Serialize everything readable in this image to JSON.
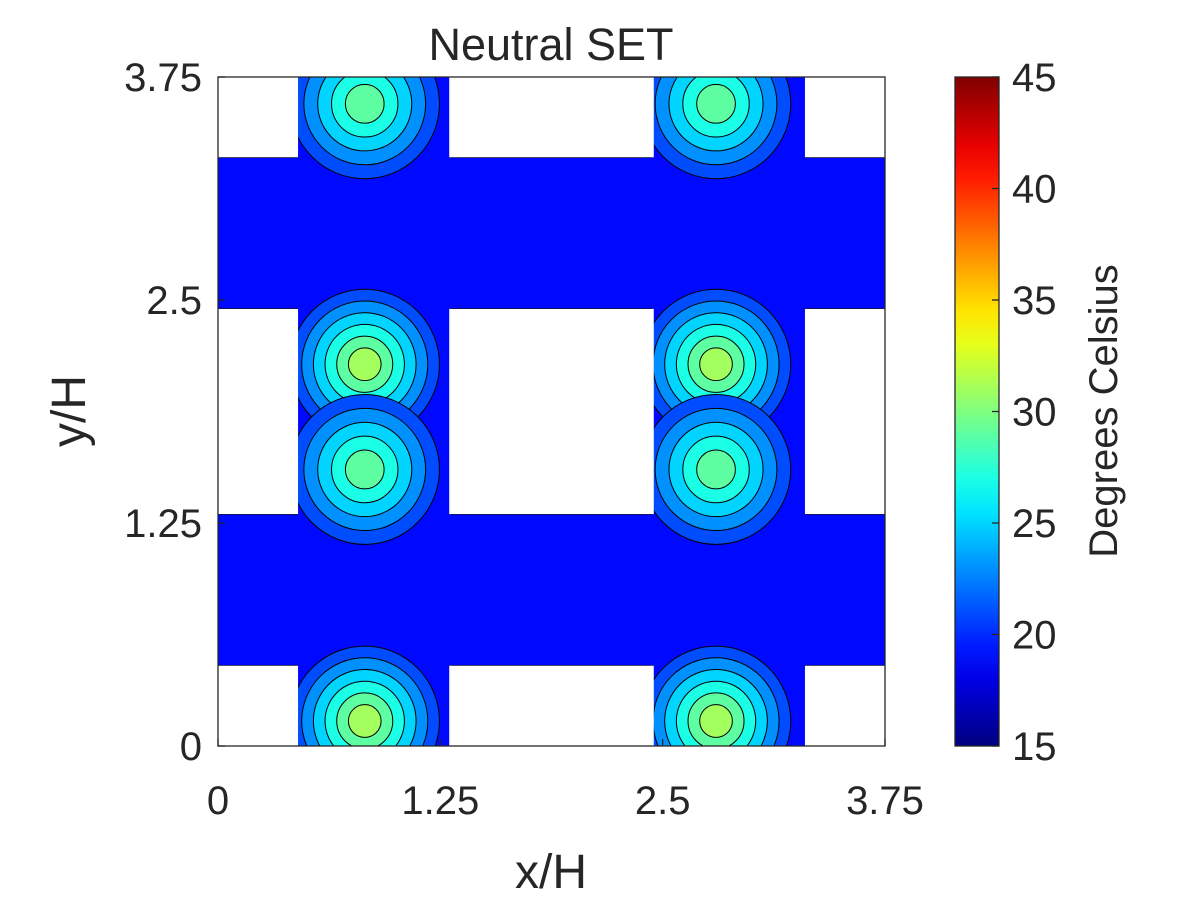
{
  "chart_data": {
    "type": "contour",
    "title": "Neutral SET",
    "xlabel": "x/H",
    "ylabel": "y/H",
    "xlim": [
      0,
      3.75
    ],
    "ylim": [
      0,
      3.75
    ],
    "xticks": [
      "0",
      "1.25",
      "2.5",
      "3.75"
    ],
    "yticks": [
      "0",
      "1.25",
      "2.5",
      "3.75"
    ],
    "colorbar": {
      "label": "Degrees Celsius",
      "range": [
        15,
        45
      ],
      "ticks": [
        "15",
        "20",
        "25",
        "30",
        "35",
        "40",
        "45"
      ],
      "colormap": "jet"
    },
    "levels_celsius": [
      17,
      19,
      21,
      23,
      25,
      27,
      29,
      31
    ],
    "buildings": [
      {
        "x": [
          0,
          0.45
        ],
        "y": [
          0.45,
          1.3
        ]
      },
      {
        "x": [
          1.3,
          2.45
        ],
        "y": [
          0.45,
          1.3
        ]
      },
      {
        "x": [
          3.3,
          3.75
        ],
        "y": [
          0.45,
          1.3
        ]
      },
      {
        "x": [
          0,
          0.45
        ],
        "y": [
          2.45,
          3.3
        ]
      },
      {
        "x": [
          1.3,
          2.45
        ],
        "y": [
          2.45,
          3.3
        ]
      },
      {
        "x": [
          3.3,
          3.75
        ],
        "y": [
          2.45,
          3.3
        ]
      },
      {
        "x": [
          0,
          0.45
        ],
        "y": [
          1.3,
          2.45
        ]
      },
      {
        "x": [
          3.3,
          3.75
        ],
        "y": [
          1.3,
          2.45
        ]
      }
    ],
    "whitespace": [
      {
        "x": [
          0,
          0.45
        ],
        "y": [
          0,
          0.45
        ]
      },
      {
        "x": [
          1.3,
          2.45
        ],
        "y": [
          0,
          0.45
        ]
      },
      {
        "x": [
          3.3,
          3.75
        ],
        "y": [
          0,
          0.45
        ]
      },
      {
        "x": [
          0,
          0.45
        ],
        "y": [
          1.3,
          2.45
        ]
      },
      {
        "x": [
          1.3,
          2.45
        ],
        "y": [
          1.3,
          2.45
        ]
      },
      {
        "x": [
          3.3,
          3.75
        ],
        "y": [
          1.3,
          2.45
        ]
      },
      {
        "x": [
          0,
          0.45
        ],
        "y": [
          3.3,
          3.75
        ]
      },
      {
        "x": [
          1.3,
          2.45
        ],
        "y": [
          3.3,
          3.75
        ]
      },
      {
        "x": [
          3.3,
          3.75
        ],
        "y": [
          3.3,
          3.75
        ]
      }
    ],
    "hotspots": [
      {
        "cx": 0.825,
        "cy": 0.14,
        "peak_c": 31
      },
      {
        "cx": 2.8,
        "cy": 0.14,
        "peak_c": 31
      },
      {
        "cx": 0.825,
        "cy": 2.14,
        "peak_c": 31
      },
      {
        "cx": 2.8,
        "cy": 2.14,
        "peak_c": 31
      },
      {
        "cx": 0.825,
        "cy": 1.55,
        "peak_c": 29
      },
      {
        "cx": 2.8,
        "cy": 1.55,
        "peak_c": 29
      },
      {
        "cx": 0.825,
        "cy": 3.6,
        "peak_c": 29
      },
      {
        "cx": 2.8,
        "cy": 3.6,
        "peak_c": 29
      }
    ]
  }
}
